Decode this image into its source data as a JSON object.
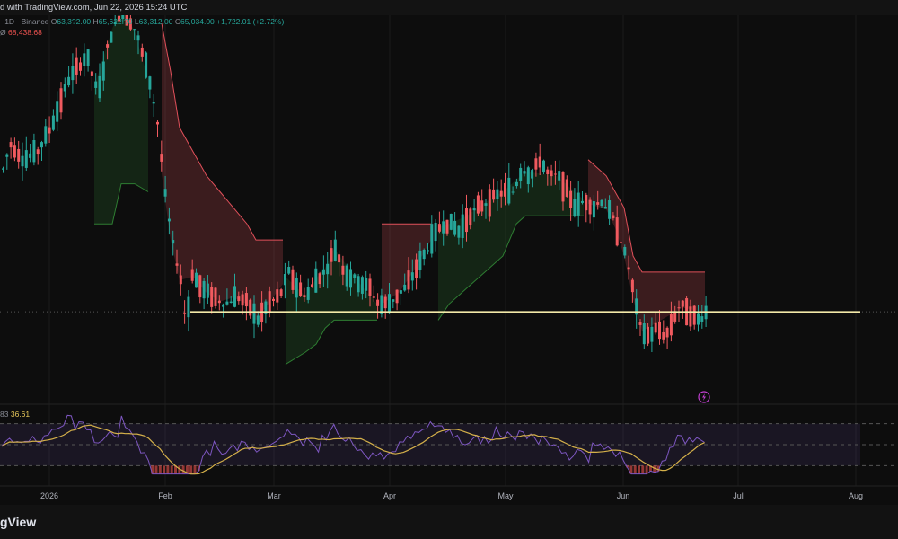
{
  "header": {
    "published_text": "d with TradingView.com, Jun 22, 2026 15:24 UTC"
  },
  "legend": {
    "symbol_text": "· 1D · Binance",
    "open_label": "O",
    "open_value": "63,3?2.00",
    "high_label": "H",
    "high_value": "65,622.?0",
    "low_label": "L",
    "low_value": "63,312.00",
    "close_label": "C",
    "close_value": "65,034.00",
    "change_text": "+1,722.01 (+2.72%)",
    "indicator_symbol": "Ø",
    "indicator_value": "68,438.68"
  },
  "rsi": {
    "left_fragment": "83",
    "ma_value": "36.61"
  },
  "x_axis": {
    "labels": [
      "2026",
      "Feb",
      "Mar",
      "Apr",
      "May",
      "Jun",
      "Jul",
      "Aug"
    ]
  },
  "footer": {
    "brand": "gView"
  },
  "colors": {
    "background": "#0d0d0d",
    "up": "#26a69a",
    "down": "#f05a5f",
    "supertrend_up": "#2e7d32",
    "supertrend_down": "#e0505a",
    "price_line": "#f3e9a8",
    "rsi_line": "#7e57c2",
    "rsi_ma": "#d4b04a"
  },
  "chart_data": {
    "type": "candlestick",
    "price_line": 65034,
    "x_labels": [
      "2026",
      "Feb",
      "Mar",
      "Apr",
      "May",
      "Jun",
      "Jul",
      "Aug"
    ],
    "supertrend_down_segments": [
      {
        "start": 0,
        "end": 2,
        "level": 84000
      },
      {
        "start": 12,
        "end": 42,
        "levels": [
          100000,
          88000,
          82000,
          78000,
          75000,
          73000,
          72000,
          72000,
          72000,
          72000,
          72000,
          72000,
          71000,
          71000,
          71000
        ]
      },
      {
        "start": 61,
        "end": 70,
        "level": 70000
      },
      {
        "start": 100,
        "end": 124,
        "levels": [
          85000,
          82000,
          80000,
          79000,
          78000,
          76000,
          74000,
          72000
        ]
      }
    ],
    "price_range": [
      58000,
      102000
    ],
    "rsi_range": [
      20,
      80
    ],
    "rsi_bands": [
      30,
      50,
      70
    ],
    "rsi_ma_last": 36.61,
    "candles_approx_count": 160
  }
}
